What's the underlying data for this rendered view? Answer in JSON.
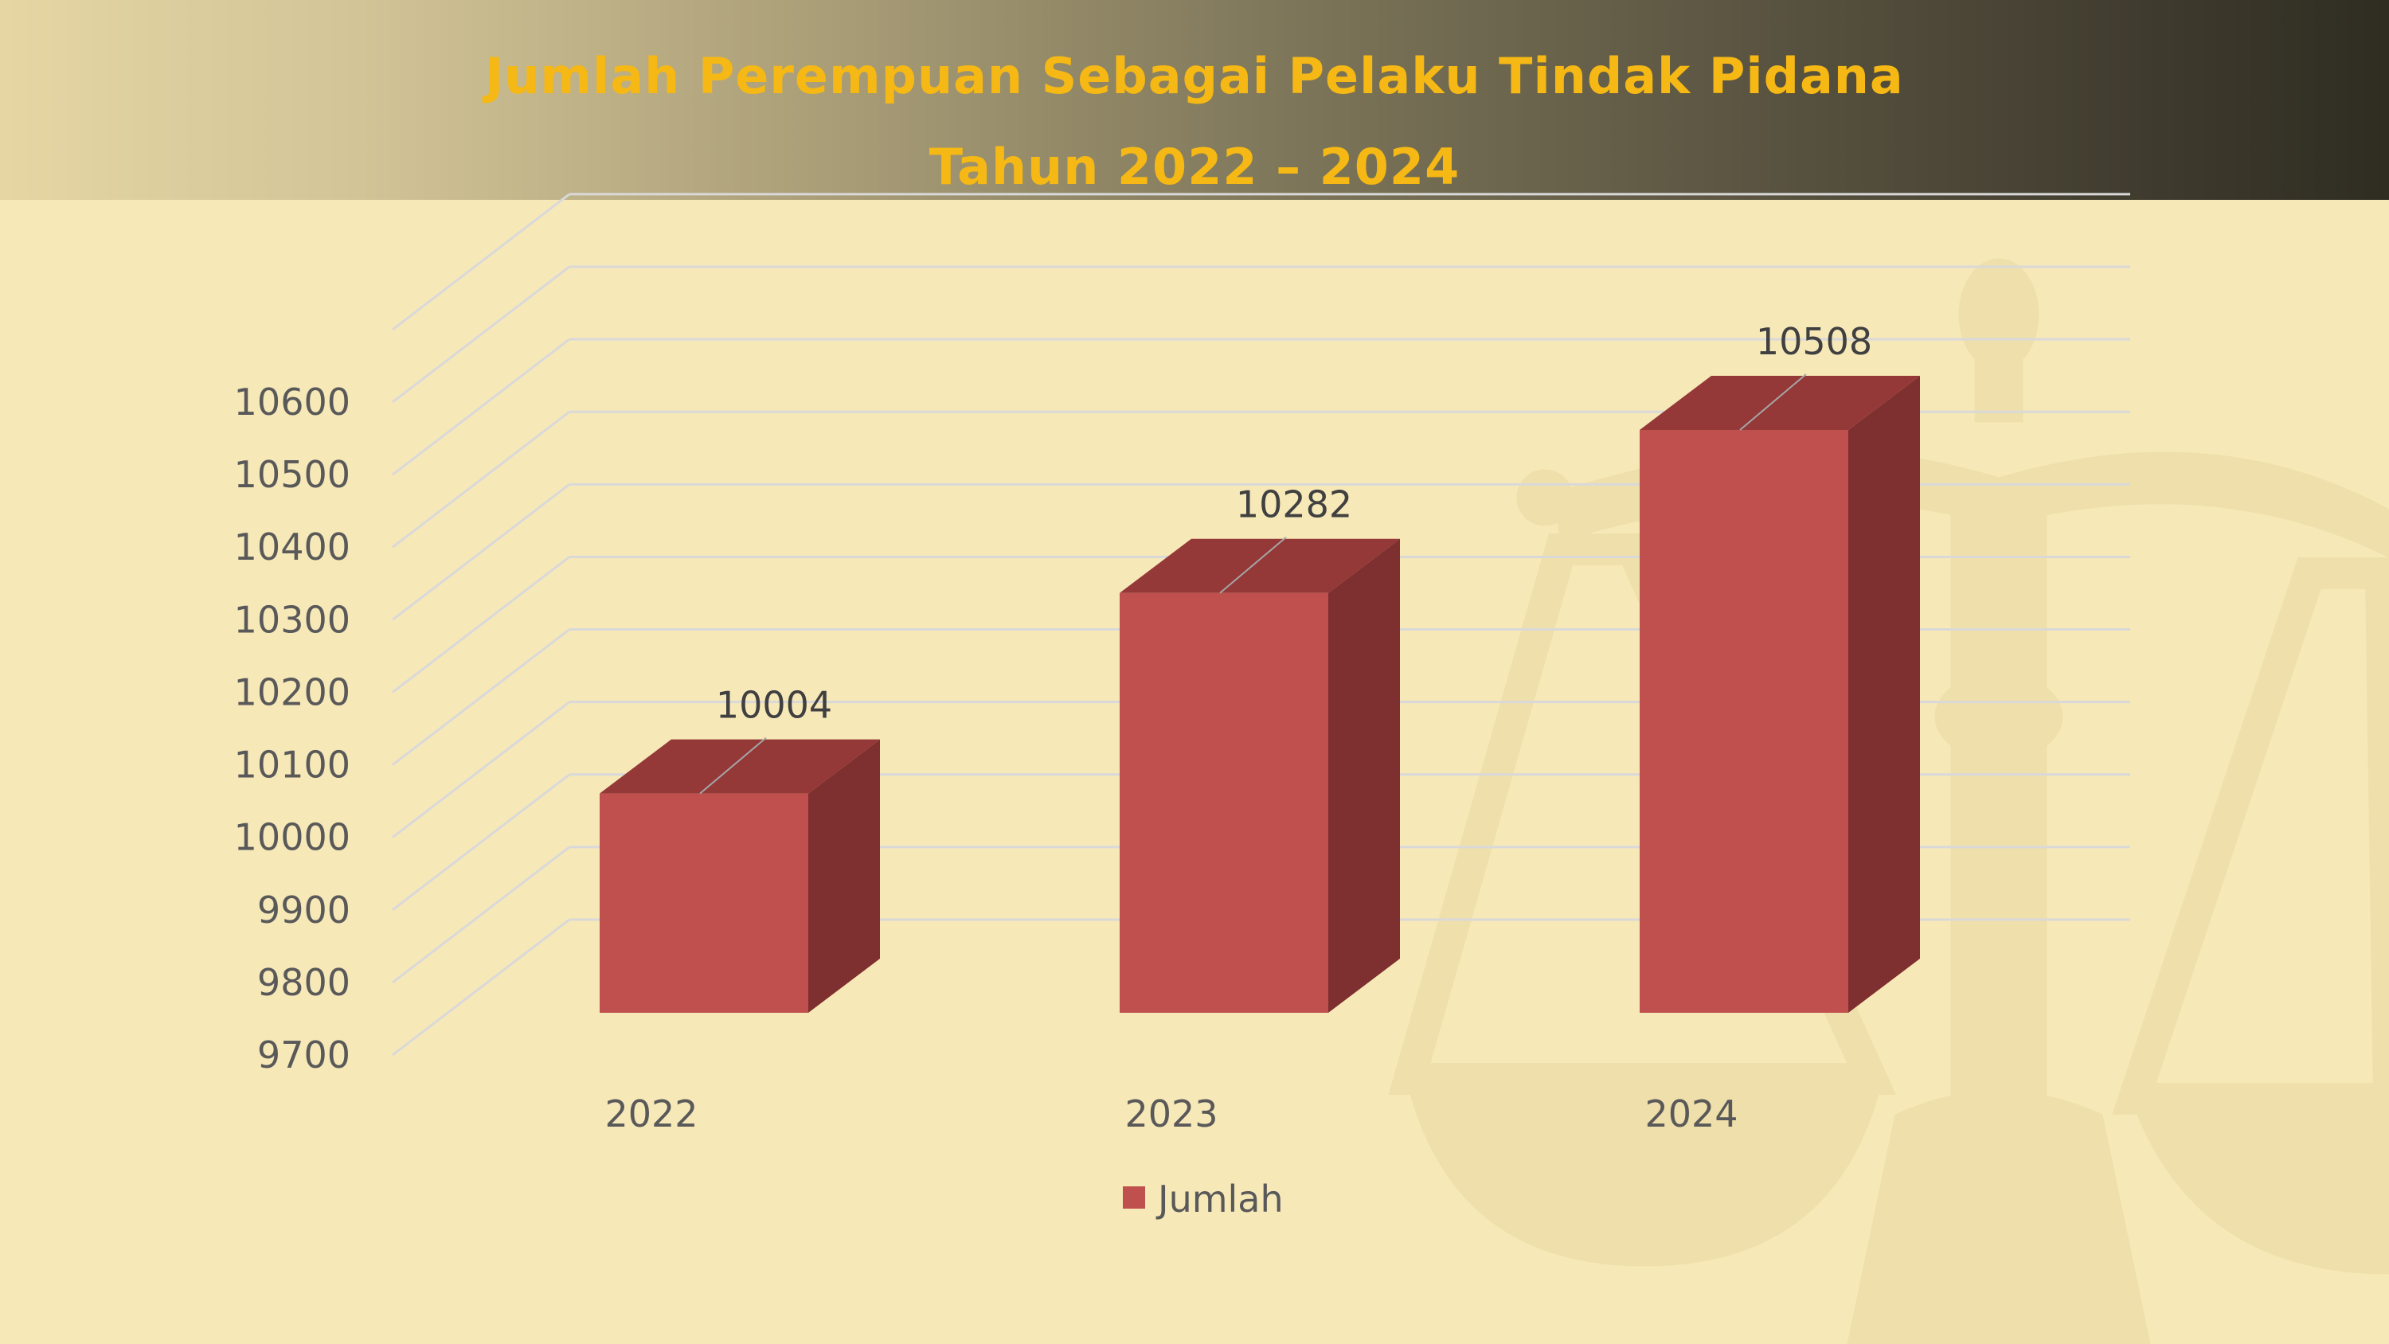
{
  "header": {
    "title_line1": "Jumlah Perempuan Sebagai Pelaku Tindak Pidana",
    "title_line2": "Tahun 2022 – 2024"
  },
  "colors": {
    "title": "#f5b814",
    "bar_front": "#c0504d",
    "bar_side": "#7e2f2f",
    "bar_top": "#943838",
    "gridline": "#d9d9d9",
    "background": "#f7e8b8",
    "watermark": "#efdfaa"
  },
  "watermark_icon": "scales-of-justice-icon",
  "chart_data": {
    "type": "bar",
    "style": "3d-column",
    "title": "Jumlah Perempuan Sebagai Pelaku Tindak Pidana Tahun 2022 – 2024",
    "categories": [
      "2022",
      "2023",
      "2024"
    ],
    "series": [
      {
        "name": "Jumlah",
        "values": [
          10004,
          10282,
          10508
        ]
      }
    ],
    "data_labels": [
      "10004",
      "10282",
      "10508"
    ],
    "y_ticks": [
      9700,
      9800,
      9900,
      10000,
      10100,
      10200,
      10300,
      10400,
      10500,
      10600
    ],
    "ylim": [
      9700,
      10600
    ],
    "grid": true,
    "legend": {
      "position": "bottom",
      "entries": [
        "Jumlah"
      ]
    }
  }
}
